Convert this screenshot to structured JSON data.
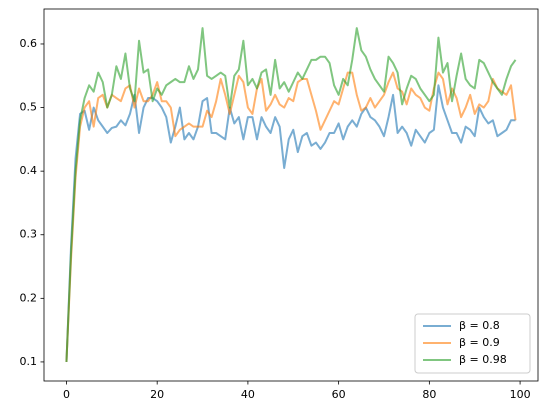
{
  "chart_data": {
    "type": "line",
    "x": [
      0,
      1,
      2,
      3,
      4,
      5,
      6,
      7,
      8,
      9,
      10,
      11,
      12,
      13,
      14,
      15,
      16,
      17,
      18,
      19,
      20,
      21,
      22,
      23,
      24,
      25,
      26,
      27,
      28,
      29,
      30,
      31,
      32,
      33,
      34,
      35,
      36,
      37,
      38,
      39,
      40,
      41,
      42,
      43,
      44,
      45,
      46,
      47,
      48,
      49,
      50,
      51,
      52,
      53,
      54,
      55,
      56,
      57,
      58,
      59,
      60,
      61,
      62,
      63,
      64,
      65,
      66,
      67,
      68,
      69,
      70,
      71,
      72,
      73,
      74,
      75,
      76,
      77,
      78,
      79,
      80,
      81,
      82,
      83,
      84,
      85,
      86,
      87,
      88,
      89,
      90,
      91,
      92,
      93,
      94,
      95,
      96,
      97,
      98,
      99
    ],
    "series": [
      {
        "name": "β = 0.8",
        "color": "#1f77b4",
        "values": [
          0.1,
          0.28,
          0.42,
          0.49,
          0.495,
          0.465,
          0.5,
          0.48,
          0.47,
          0.46,
          0.468,
          0.47,
          0.48,
          0.472,
          0.49,
          0.52,
          0.46,
          0.5,
          0.515,
          0.515,
          0.51,
          0.5,
          0.485,
          0.445,
          0.47,
          0.5,
          0.45,
          0.46,
          0.45,
          0.47,
          0.51,
          0.515,
          0.46,
          0.46,
          0.455,
          0.45,
          0.5,
          0.475,
          0.485,
          0.45,
          0.485,
          0.485,
          0.45,
          0.485,
          0.47,
          0.46,
          0.485,
          0.47,
          0.405,
          0.45,
          0.465,
          0.43,
          0.455,
          0.46,
          0.44,
          0.445,
          0.435,
          0.445,
          0.46,
          0.46,
          0.475,
          0.45,
          0.47,
          0.48,
          0.47,
          0.49,
          0.5,
          0.485,
          0.48,
          0.47,
          0.455,
          0.485,
          0.52,
          0.46,
          0.47,
          0.46,
          0.44,
          0.465,
          0.455,
          0.445,
          0.46,
          0.465,
          0.535,
          0.5,
          0.48,
          0.46,
          0.46,
          0.445,
          0.47,
          0.465,
          0.455,
          0.5,
          0.485,
          0.475,
          0.48,
          0.455,
          0.46,
          0.465,
          0.48,
          0.48
        ]
      },
      {
        "name": "β = 0.9",
        "color": "#ff7f0e",
        "values": [
          0.1,
          0.26,
          0.39,
          0.47,
          0.5,
          0.51,
          0.47,
          0.515,
          0.52,
          0.5,
          0.52,
          0.515,
          0.51,
          0.53,
          0.535,
          0.5,
          0.53,
          0.51,
          0.51,
          0.52,
          0.54,
          0.51,
          0.51,
          0.5,
          0.455,
          0.465,
          0.47,
          0.475,
          0.47,
          0.47,
          0.47,
          0.495,
          0.485,
          0.51,
          0.545,
          0.52,
          0.49,
          0.52,
          0.55,
          0.54,
          0.5,
          0.49,
          0.53,
          0.545,
          0.495,
          0.505,
          0.52,
          0.505,
          0.5,
          0.515,
          0.51,
          0.54,
          0.545,
          0.545,
          0.52,
          0.495,
          0.465,
          0.48,
          0.495,
          0.51,
          0.505,
          0.53,
          0.555,
          0.555,
          0.52,
          0.495,
          0.5,
          0.515,
          0.5,
          0.51,
          0.52,
          0.54,
          0.555,
          0.53,
          0.525,
          0.505,
          0.53,
          0.52,
          0.515,
          0.5,
          0.495,
          0.53,
          0.555,
          0.545,
          0.505,
          0.53,
          0.515,
          0.485,
          0.5,
          0.52,
          0.49,
          0.505,
          0.5,
          0.51,
          0.545,
          0.53,
          0.525,
          0.52,
          0.535,
          0.48
        ]
      },
      {
        "name": "β = 0.98",
        "color": "#2ca02c",
        "values": [
          0.1,
          0.27,
          0.4,
          0.48,
          0.515,
          0.535,
          0.525,
          0.555,
          0.54,
          0.5,
          0.52,
          0.565,
          0.545,
          0.585,
          0.53,
          0.51,
          0.605,
          0.555,
          0.56,
          0.51,
          0.53,
          0.52,
          0.535,
          0.54,
          0.545,
          0.54,
          0.54,
          0.565,
          0.545,
          0.56,
          0.625,
          0.55,
          0.545,
          0.55,
          0.555,
          0.55,
          0.5,
          0.55,
          0.56,
          0.605,
          0.535,
          0.545,
          0.53,
          0.555,
          0.56,
          0.52,
          0.575,
          0.53,
          0.54,
          0.525,
          0.54,
          0.555,
          0.545,
          0.56,
          0.575,
          0.575,
          0.58,
          0.58,
          0.57,
          0.535,
          0.52,
          0.545,
          0.535,
          0.575,
          0.625,
          0.59,
          0.58,
          0.56,
          0.545,
          0.535,
          0.525,
          0.58,
          0.57,
          0.555,
          0.505,
          0.53,
          0.55,
          0.545,
          0.53,
          0.52,
          0.51,
          0.52,
          0.61,
          0.555,
          0.57,
          0.51,
          0.55,
          0.585,
          0.545,
          0.535,
          0.53,
          0.575,
          0.57,
          0.555,
          0.54,
          0.53,
          0.52,
          0.545,
          0.565,
          0.575
        ]
      }
    ],
    "xlim": [
      -4.95,
      103.95
    ],
    "xticks": [
      0,
      20,
      40,
      60,
      80,
      100
    ],
    "ylim": [
      0.07,
      0.655
    ],
    "yticks": [
      0.1,
      0.2,
      0.3,
      0.4,
      0.5,
      0.6
    ],
    "grid": false,
    "legend": "lower right"
  }
}
